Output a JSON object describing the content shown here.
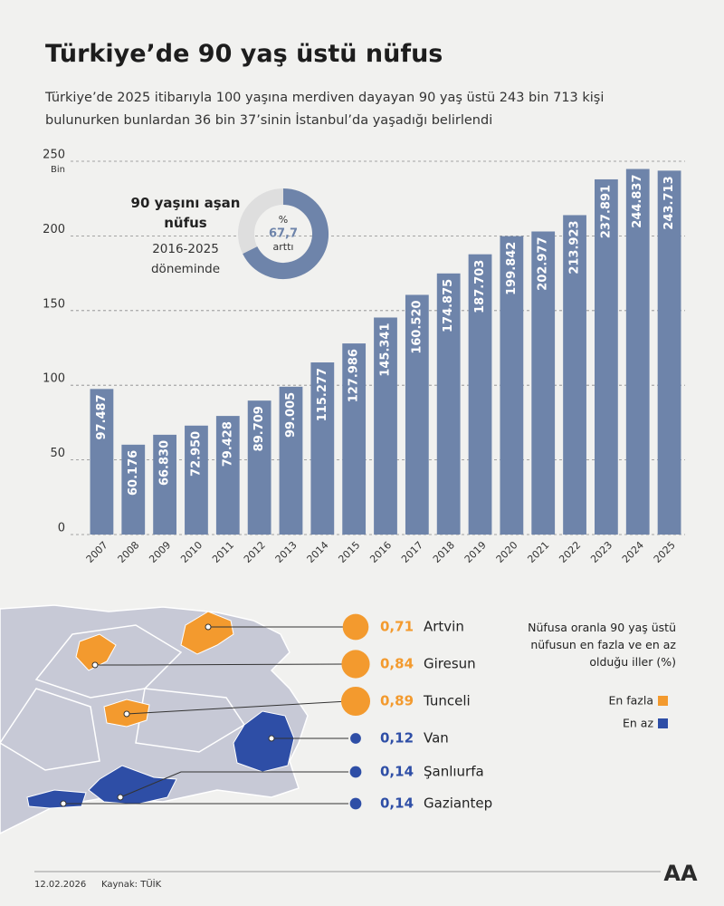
{
  "chart_data": [
    {
      "type": "bar",
      "title": "Türkiye’de 90 yaş üstü nüfus",
      "subtitle": "Türkiye’de 2025 itibarıyla 100 yaşına merdiven dayayan 90 yaş üstü 243 bin 713 kişi bulunurken bunlardan 36 bin 37’sinin İstanbul’da yaşadığı belirlendi",
      "categories": [
        "2007",
        "2008",
        "2009",
        "2010",
        "2011",
        "2012",
        "2013",
        "2014",
        "2015",
        "2016",
        "2017",
        "2018",
        "2019",
        "2020",
        "2021",
        "2022",
        "2023",
        "2024",
        "2025"
      ],
      "values": [
        97.487,
        60.176,
        66.83,
        72.95,
        79.428,
        89.709,
        99.005,
        115.277,
        127.986,
        145.341,
        160.52,
        174.875,
        187.703,
        199.842,
        202.977,
        213.923,
        237.891,
        244.837,
        243.713
      ],
      "value_labels": [
        "97.487",
        "60.176",
        "66.830",
        "72.950",
        "79.428",
        "89.709",
        "99.005",
        "115.277",
        "127.986",
        "145.341",
        "160.520",
        "174.875",
        "187.703",
        "199.842",
        "202.977",
        "213.923",
        "237.891",
        "244.837",
        "243.713"
      ],
      "color": "#6e84aa",
      "ylim": [
        0,
        250
      ],
      "yticks": [
        0,
        50,
        100,
        150,
        200,
        250
      ],
      "y_unit": "Bin",
      "grid": true
    },
    {
      "type": "donut",
      "title": "90 yaşını aşan nüfus",
      "subtitle": "2016-2025 döneminde",
      "values": [
        67.7
      ],
      "value_labels": [
        "67,7"
      ],
      "unit": "%",
      "caption": "arttı",
      "color": "#6e84aa"
    },
    {
      "type": "dot-list",
      "title": "Nüfusa oranla 90 yaş üstü nüfusun en fazla ve en az olduğu iller (%)",
      "series": [
        {
          "name": "En fazla",
          "color": "#f39a2e",
          "categories": [
            "Artvin",
            "Giresun",
            "Tunceli"
          ],
          "values": [
            0.71,
            0.84,
            0.89
          ],
          "value_labels": [
            "0,71",
            "0,84",
            "0,89"
          ]
        },
        {
          "name": "En az",
          "color": "#2e4ea6",
          "categories": [
            "Van",
            "Şanlıurfa",
            "Gaziantep"
          ],
          "values": [
            0.12,
            0.14,
            0.14
          ],
          "value_labels": [
            "0,12",
            "0,14",
            "0,14"
          ]
        }
      ]
    }
  ],
  "footer": {
    "date": "12.02.2026",
    "source": "Kaynak: TÜİK",
    "logo": "AA"
  }
}
